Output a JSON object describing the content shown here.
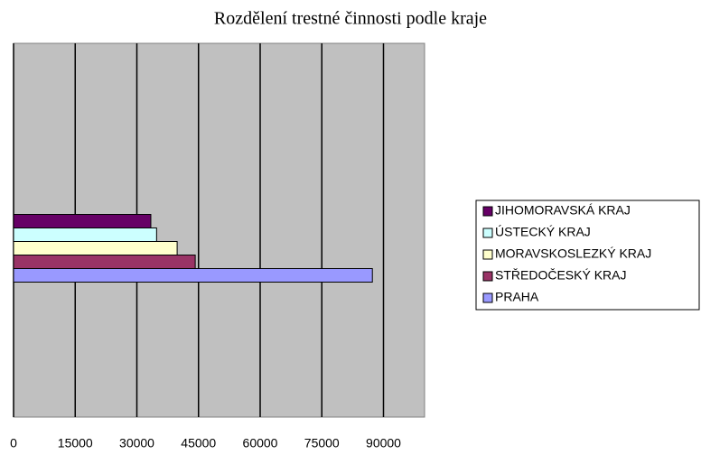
{
  "chart_data": {
    "type": "hbar",
    "title": "Rozdělení trestné činnosti podle kraje",
    "categories": [
      null
    ],
    "series": [
      {
        "name": "PRAHA",
        "color": "#9999ff",
        "values": [
          87300
        ]
      },
      {
        "name": "STŘEDOČESKÝ KRAJ",
        "color": "#993366",
        "values": [
          44200
        ]
      },
      {
        "name": "MORAVSKOSLEZKÝ KRAJ",
        "color": "#ffffcc",
        "values": [
          39800
        ]
      },
      {
        "name": "ÚSTECKÝ KRAJ",
        "color": "#ccffff",
        "values": [
          34800
        ]
      },
      {
        "name": "JIHOMORAVSKÁ KRAJ",
        "color": "#660066",
        "values": [
          33400
        ]
      }
    ],
    "xlim": [
      0,
      100000
    ],
    "xticks": [
      0,
      15000,
      30000,
      45000,
      60000,
      75000,
      90000
    ],
    "grid": true,
    "legend": "right"
  }
}
